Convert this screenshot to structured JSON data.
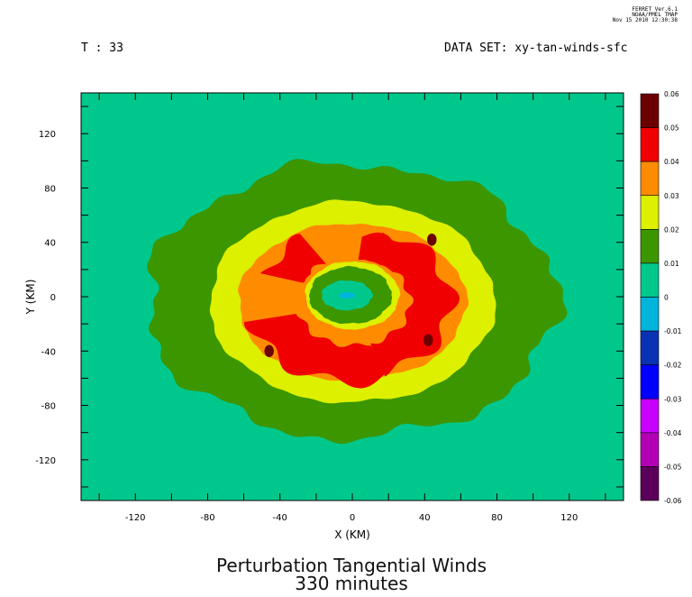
{
  "header": {
    "stamp_lines": [
      "FERRET Ver.6.1",
      "NOAA/PMEL TMAP",
      "Nov 15 2010 12:30:38"
    ],
    "time_label": "T : 33",
    "dataset_label": "DATA SET: xy-tan-winds-sfc"
  },
  "title_lines": [
    "Perturbation Tangential Winds",
    "330 minutes"
  ],
  "chart_data": {
    "type": "heatmap",
    "title": "Perturbation Tangential Winds 330 minutes",
    "xlabel": "X (KM)",
    "ylabel": "Y (KM)",
    "xlim": [
      -150,
      150
    ],
    "ylim": [
      -150,
      150
    ],
    "x_ticks": [
      -120,
      -80,
      -40,
      0,
      40,
      80,
      120
    ],
    "y_ticks": [
      120,
      80,
      40,
      0,
      -40,
      -80,
      -120
    ],
    "x_tick_labels": [
      "-120",
      "-80",
      "-40",
      "0",
      "40",
      "80",
      "120"
    ],
    "y_tick_labels": [
      "120",
      "80",
      "40",
      "0",
      "-40",
      "-80",
      "-120"
    ],
    "colorbar": {
      "levels": [
        "0.06",
        "0.05",
        "0.04",
        "0.03",
        "0.02",
        "0.01",
        "0",
        "-0.01",
        "-0.02",
        "-0.03",
        "-0.04",
        "-0.05",
        "-0.06"
      ],
      "bins": [
        {
          "min": 0.05,
          "max": 0.06,
          "color": "#6b0000"
        },
        {
          "min": 0.04,
          "max": 0.05,
          "color": "#f00000"
        },
        {
          "min": 0.03,
          "max": 0.04,
          "color": "#ff8c00"
        },
        {
          "min": 0.02,
          "max": 0.03,
          "color": "#dcf000"
        },
        {
          "min": 0.01,
          "max": 0.02,
          "color": "#3c9600"
        },
        {
          "min": 0.0,
          "max": 0.01,
          "color": "#00c88c"
        },
        {
          "min": -0.01,
          "max": 0.0,
          "color": "#00b4dc"
        },
        {
          "min": -0.02,
          "max": -0.01,
          "color": "#0a32b4"
        },
        {
          "min": -0.03,
          "max": -0.02,
          "color": "#0000ff"
        },
        {
          "min": -0.04,
          "max": -0.03,
          "color": "#c800ff"
        },
        {
          "min": -0.05,
          "max": -0.04,
          "color": "#b400b4"
        },
        {
          "min": -0.06,
          "max": -0.05,
          "color": "#5a005a"
        }
      ]
    },
    "background_value_range": [
      0.0,
      0.01
    ],
    "contour_regions": [
      {
        "name": "outer-ring",
        "range": [
          0.01,
          0.02
        ],
        "approx_radius_km": [
          90,
          110
        ],
        "color": "#3c9600"
      },
      {
        "name": "middle-ring",
        "range": [
          0.02,
          0.03
        ],
        "approx_radius_km": [
          62,
          75
        ],
        "color": "#dcf000"
      },
      {
        "name": "inner-ring",
        "range": [
          0.03,
          0.04
        ],
        "approx_radius_km": [
          48,
          60
        ],
        "color": "#ff8c00"
      },
      {
        "name": "eyewall-max",
        "range": [
          0.04,
          0.05
        ],
        "approx_radius_km": [
          25,
          45
        ],
        "color": "#f00000"
      },
      {
        "name": "eye-green",
        "range": [
          0.01,
          0.02
        ],
        "approx_radius_km": [
          10,
          24
        ],
        "color": "#3c9600"
      },
      {
        "name": "eye-center",
        "range": [
          -0.01,
          0.0
        ],
        "approx_center_km": [
          -3,
          1
        ],
        "color": "#00b4dc"
      }
    ],
    "local_maxima_km": [
      {
        "x": 44,
        "y": 42,
        "range": [
          0.05,
          0.06
        ]
      },
      {
        "x": -46,
        "y": -40,
        "range": [
          0.05,
          0.06
        ]
      },
      {
        "x": 42,
        "y": -32,
        "range": [
          0.05,
          0.06
        ]
      }
    ],
    "grid": false,
    "legend": "right-colorbar"
  }
}
